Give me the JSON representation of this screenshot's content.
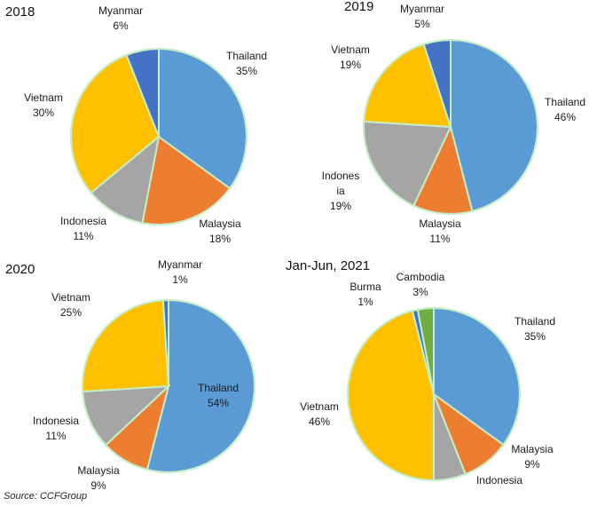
{
  "source": "Source: CCFGroup",
  "chart_data": [
    {
      "type": "pie",
      "title": "2018",
      "slices": [
        {
          "name": "Thailand",
          "value": 35,
          "label": "35%",
          "color": "#5B9BD5"
        },
        {
          "name": "Malaysia",
          "value": 18,
          "label": "18%",
          "color": "#ED7D31"
        },
        {
          "name": "Indonesia",
          "value": 11,
          "label": "11%",
          "color": "#A5A5A5"
        },
        {
          "name": "Vietnam",
          "value": 30,
          "label": "30%",
          "color": "#FFC000"
        },
        {
          "name": "Myanmar",
          "value": 6,
          "label": "6%",
          "color": "#4472C4"
        }
      ]
    },
    {
      "type": "pie",
      "title": "2019",
      "slices": [
        {
          "name": "Thailand",
          "value": 46,
          "label": "46%",
          "color": "#5B9BD5"
        },
        {
          "name": "Malaysia",
          "value": 11,
          "label": "11%",
          "color": "#ED7D31"
        },
        {
          "name": "Indonesia",
          "value": 19,
          "label": "19%",
          "color": "#A5A5A5"
        },
        {
          "name": "Vietnam",
          "value": 19,
          "label": "19%",
          "color": "#FFC000"
        },
        {
          "name": "Myanmar",
          "value": 5,
          "label": "5%",
          "color": "#4472C4"
        }
      ]
    },
    {
      "type": "pie",
      "title": "2020",
      "slices": [
        {
          "name": "Thailand",
          "value": 54,
          "label": "54%",
          "color": "#5B9BD5"
        },
        {
          "name": "Malaysia",
          "value": 9,
          "label": "9%",
          "color": "#ED7D31"
        },
        {
          "name": "Indonesia",
          "value": 11,
          "label": "11%",
          "color": "#A5A5A5"
        },
        {
          "name": "Vietnam",
          "value": 25,
          "label": "25%",
          "color": "#FFC000"
        },
        {
          "name": "Myanmar",
          "value": 1,
          "label": "1%",
          "color": "#4472C4"
        }
      ]
    },
    {
      "type": "pie",
      "title": "Jan-Jun, 2021",
      "slices": [
        {
          "name": "Thailand",
          "value": 35,
          "label": "35%",
          "color": "#5B9BD5"
        },
        {
          "name": "Malaysia",
          "value": 9,
          "label": "9%",
          "color": "#ED7D31"
        },
        {
          "name": "Indonesia",
          "value": 6,
          "label": "6%",
          "color": "#A5A5A5"
        },
        {
          "name": "Vietnam",
          "value": 46,
          "label": "46%",
          "color": "#FFC000"
        },
        {
          "name": "Burma",
          "value": 1,
          "label": "1%",
          "color": "#4472C4"
        },
        {
          "name": "Cambodia",
          "value": 3,
          "label": "3%",
          "color": "#70AD47"
        }
      ]
    }
  ]
}
